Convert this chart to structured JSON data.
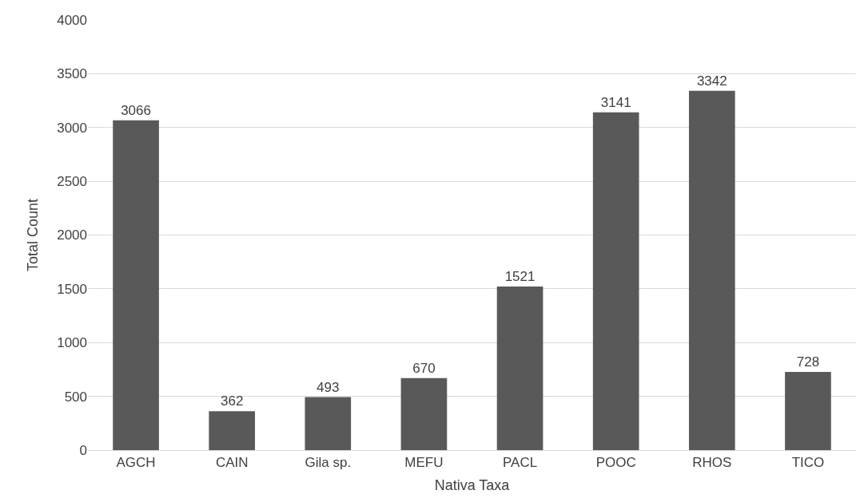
{
  "chart_data": {
    "type": "bar",
    "xlabel": "Nativa Taxa",
    "ylabel": "Total Count",
    "categories": [
      "AGCH",
      "CAIN",
      "Gila sp.",
      "MEFU",
      "PACL",
      "POOC",
      "RHOS",
      "TICO"
    ],
    "values": [
      3066,
      362,
      493,
      670,
      1521,
      3141,
      3342,
      728
    ],
    "color": "#595959",
    "ylim": [
      0,
      4000
    ],
    "yticks": [
      0,
      500,
      1000,
      1500,
      2000,
      2500,
      3000,
      3500,
      4000
    ],
    "grid": "y",
    "data_labels": true
  }
}
